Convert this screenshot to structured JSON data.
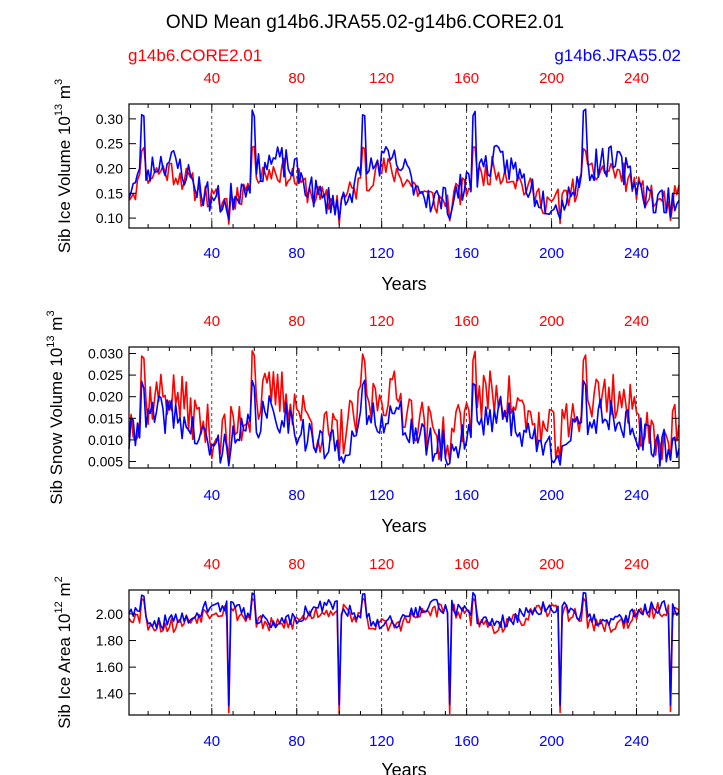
{
  "title": "OND Mean g14b6.JRA55.02-g14b6.CORE2.01",
  "legend": {
    "left_label": "g14b6.CORE2.01",
    "right_label": "g14b6.JRA55.02",
    "left_color": "#ff0000",
    "right_color": "#0000ff"
  },
  "xlabel": "Years",
  "chart_data": [
    {
      "type": "line",
      "name": "sib-ice-volume",
      "ylabel": "Sib Ice Volume",
      "ylabel_power": "13",
      "ylabel_unit": "m",
      "ylabel_unit_power": "3",
      "xlim": [
        1,
        260
      ],
      "ylim": [
        0.08,
        0.33
      ],
      "yticks": [
        "0.10",
        "0.15",
        "0.20",
        "0.25",
        "0.30"
      ],
      "ytick_values": [
        0.1,
        0.15,
        0.2,
        0.25,
        0.3
      ],
      "xticks": [
        "40",
        "80",
        "120",
        "160",
        "200",
        "240"
      ],
      "xtick_values": [
        40,
        80,
        120,
        160,
        200,
        240
      ],
      "series": [
        {
          "name": "g14b6.CORE2.01",
          "color": "#ff0000",
          "base": 0.165,
          "amp": 0.04,
          "spike": 0.245,
          "dip": 0.085,
          "noise": 0.028,
          "seed": 11,
          "rising": false
        },
        {
          "name": "g14b6.JRA55.02",
          "color": "#0000ff",
          "base": 0.175,
          "amp": 0.05,
          "spike": 0.32,
          "dip": 0.09,
          "noise": 0.032,
          "seed": 23,
          "rising": false
        }
      ]
    },
    {
      "type": "line",
      "name": "sib-snow-volume",
      "ylabel": "Sib Snow Volume",
      "ylabel_power": "13",
      "ylabel_unit": "m",
      "ylabel_unit_power": "3",
      "xlim": [
        1,
        260
      ],
      "ylim": [
        0.0035,
        0.0315
      ],
      "yticks": [
        "0.005",
        "0.010",
        "0.015",
        "0.020",
        "0.025",
        "0.030"
      ],
      "ytick_values": [
        0.005,
        0.01,
        0.015,
        0.02,
        0.025,
        0.03
      ],
      "xticks": [
        "40",
        "80",
        "120",
        "160",
        "200",
        "240"
      ],
      "xtick_values": [
        40,
        80,
        120,
        160,
        200,
        240
      ],
      "series": [
        {
          "name": "g14b6.CORE2.01",
          "color": "#ff0000",
          "base": 0.016,
          "amp": 0.006,
          "spike": 0.031,
          "dip": 0.005,
          "noise": 0.006,
          "seed": 37,
          "rising": false
        },
        {
          "name": "g14b6.JRA55.02",
          "color": "#0000ff",
          "base": 0.012,
          "amp": 0.005,
          "spike": 0.024,
          "dip": 0.004,
          "noise": 0.0045,
          "seed": 41,
          "rising": false
        }
      ]
    },
    {
      "type": "line",
      "name": "sib-ice-area",
      "ylabel": "Sib Ice Area",
      "ylabel_power": "12",
      "ylabel_unit": "m",
      "ylabel_unit_power": "2",
      "xlim": [
        1,
        260
      ],
      "ylim": [
        1.24,
        2.18
      ],
      "yticks": [
        "1.40",
        "1.60",
        "1.80",
        "2.00"
      ],
      "ytick_values": [
        1.4,
        1.6,
        1.8,
        2.0
      ],
      "xticks": [
        "40",
        "80",
        "120",
        "160",
        "200",
        "240"
      ],
      "xtick_values": [
        40,
        80,
        120,
        160,
        200,
        240
      ],
      "series": [
        {
          "name": "g14b6.CORE2.01",
          "color": "#ff0000",
          "base": 1.97,
          "amp": 0.1,
          "spike": 2.12,
          "dip": 1.25,
          "noise": 0.06,
          "seed": 53,
          "rising": true
        },
        {
          "name": "g14b6.JRA55.02",
          "color": "#0000ff",
          "base": 2.0,
          "amp": 0.1,
          "spike": 2.16,
          "dip": 1.3,
          "noise": 0.055,
          "seed": 59,
          "rising": true
        }
      ]
    }
  ]
}
